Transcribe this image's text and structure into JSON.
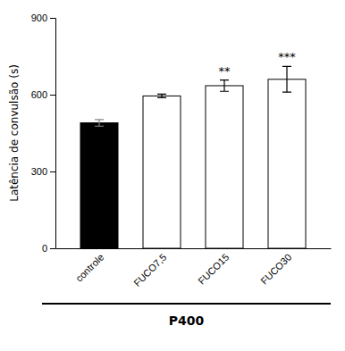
{
  "chart_data": {
    "type": "bar",
    "categories": [
      "controle",
      "FUCO7,5",
      "FUCO15",
      "FUCO30"
    ],
    "values": [
      490,
      595,
      635,
      660
    ],
    "errors": [
      13,
      7,
      22,
      50
    ],
    "significance": [
      null,
      null,
      "**",
      "***"
    ],
    "colors": [
      "black",
      "white",
      "white",
      "white"
    ],
    "ylabel": "Latência de convulsão (s)",
    "xlabel": "P400",
    "ylim": [
      0,
      900
    ],
    "yticks": [
      0,
      300,
      600,
      900
    ],
    "grid": false
  }
}
